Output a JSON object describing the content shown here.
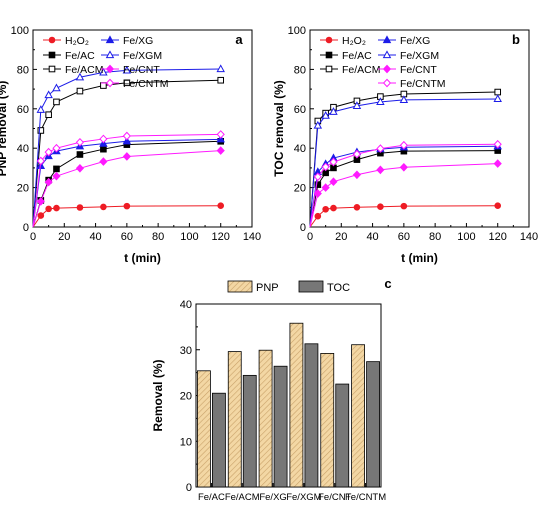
{
  "chart_data": [
    {
      "type": "line",
      "panel_label": "a",
      "xlabel": "t (min)",
      "ylabel": "PNP removal (%)",
      "xlim": [
        0,
        140
      ],
      "ylim": [
        0,
        100
      ],
      "xticks": [
        "0",
        "20",
        "40",
        "60",
        "80",
        "100",
        "120",
        "140"
      ],
      "yticks": [
        "0",
        "20",
        "40",
        "60",
        "80",
        "100"
      ],
      "legend": "top-left, two columns",
      "x": [
        0,
        5,
        10,
        15,
        30,
        45,
        60,
        120
      ],
      "series": [
        {
          "name": "H₂O₂",
          "marker": "filled-circle",
          "color": "#ee1c25",
          "values": [
            0,
            5.8,
            9.2,
            9.6,
            9.9,
            10.2,
            10.6,
            10.8
          ]
        },
        {
          "name": "Fe/AC",
          "marker": "filled-square",
          "color": "#000000",
          "values": [
            0,
            13.5,
            23.8,
            29.5,
            36.8,
            39.5,
            41.8,
            43.5
          ]
        },
        {
          "name": "Fe/ACM",
          "marker": "open-square",
          "color": "#000000",
          "values": [
            0,
            49,
            57,
            63.5,
            69,
            71.8,
            73.2,
            74.5
          ]
        },
        {
          "name": "Fe/XG",
          "marker": "filled-triangle",
          "color": "#1c1ce8",
          "values": [
            0,
            31,
            36,
            38.5,
            41,
            42.3,
            43.5,
            44.5
          ]
        },
        {
          "name": "Fe/XGM",
          "marker": "open-triangle",
          "color": "#1c1ce8",
          "values": [
            0,
            59.5,
            67,
            70.5,
            76,
            78.5,
            79.5,
            80.2
          ]
        },
        {
          "name": "Fe/CNT",
          "marker": "filled-diamond",
          "color": "#ff1aff",
          "values": [
            0,
            13,
            22.8,
            25.8,
            29.8,
            33.2,
            35.8,
            38.8
          ]
        },
        {
          "name": "Fe/CNTM",
          "marker": "open-diamond",
          "color": "#ff1aff",
          "values": [
            0,
            33.5,
            38,
            40,
            43,
            44.7,
            46.2,
            47
          ]
        }
      ]
    },
    {
      "type": "line",
      "panel_label": "b",
      "xlabel": "t (min)",
      "ylabel": "TOC removal (%)",
      "xlim": [
        0,
        140
      ],
      "ylim": [
        0,
        100
      ],
      "xticks": [
        "0",
        "20",
        "40",
        "60",
        "80",
        "100",
        "120",
        "140"
      ],
      "yticks": [
        "0",
        "20",
        "40",
        "60",
        "80",
        "100"
      ],
      "legend": "top-left, two columns",
      "x": [
        0,
        5,
        10,
        15,
        30,
        45,
        60,
        120
      ],
      "series": [
        {
          "name": "H₂O₂",
          "marker": "filled-circle",
          "color": "#ee1c25",
          "values": [
            0,
            5.5,
            9,
            9.6,
            10,
            10.3,
            10.6,
            10.8
          ]
        },
        {
          "name": "Fe/AC",
          "marker": "filled-square",
          "color": "#000000",
          "values": [
            0,
            21.5,
            27.5,
            30,
            34.2,
            37.5,
            38.5,
            38.8
          ]
        },
        {
          "name": "Fe/ACM",
          "marker": "open-square",
          "color": "#000000",
          "values": [
            0,
            53.8,
            57.8,
            60.8,
            64,
            66.2,
            67.5,
            68.5
          ]
        },
        {
          "name": "Fe/XG",
          "marker": "filled-triangle",
          "color": "#1c1ce8",
          "values": [
            0,
            28,
            32,
            35,
            38,
            39.5,
            40.5,
            41
          ]
        },
        {
          "name": "Fe/XGM",
          "marker": "open-triangle",
          "color": "#1c1ce8",
          "values": [
            0,
            51.5,
            56.5,
            58.5,
            61.5,
            63.5,
            64.5,
            65
          ]
        },
        {
          "name": "Fe/CNT",
          "marker": "filled-diamond",
          "color": "#ff1aff",
          "values": [
            0,
            17,
            20,
            23,
            26.5,
            29,
            30.3,
            32.2
          ]
        },
        {
          "name": "Fe/CNTM",
          "marker": "open-diamond",
          "color": "#ff1aff",
          "values": [
            0,
            25.5,
            30.5,
            33,
            37,
            39.8,
            41.5,
            42
          ]
        }
      ]
    },
    {
      "type": "bar",
      "panel_label": "c",
      "ylabel": "Removal (%)",
      "ylim": [
        0,
        40
      ],
      "yticks": [
        "0",
        "10",
        "20",
        "30",
        "40"
      ],
      "legend": "top, horizontal",
      "categories": [
        "Fe/AC",
        "Fe/ACM",
        "Fe/XG",
        "Fe/XGM",
        "Fe/CNT",
        "Fe/CNTM"
      ],
      "series": [
        {
          "name": "PNP",
          "fill": "hatched",
          "color": "#f3d7a4",
          "values": [
            25.4,
            29.6,
            29.9,
            35.8,
            29.2,
            31.1
          ]
        },
        {
          "name": "TOC",
          "fill": "solid",
          "color": "#777777",
          "values": [
            20.5,
            24.4,
            26.4,
            31.3,
            22.5,
            27.4
          ]
        }
      ]
    }
  ]
}
